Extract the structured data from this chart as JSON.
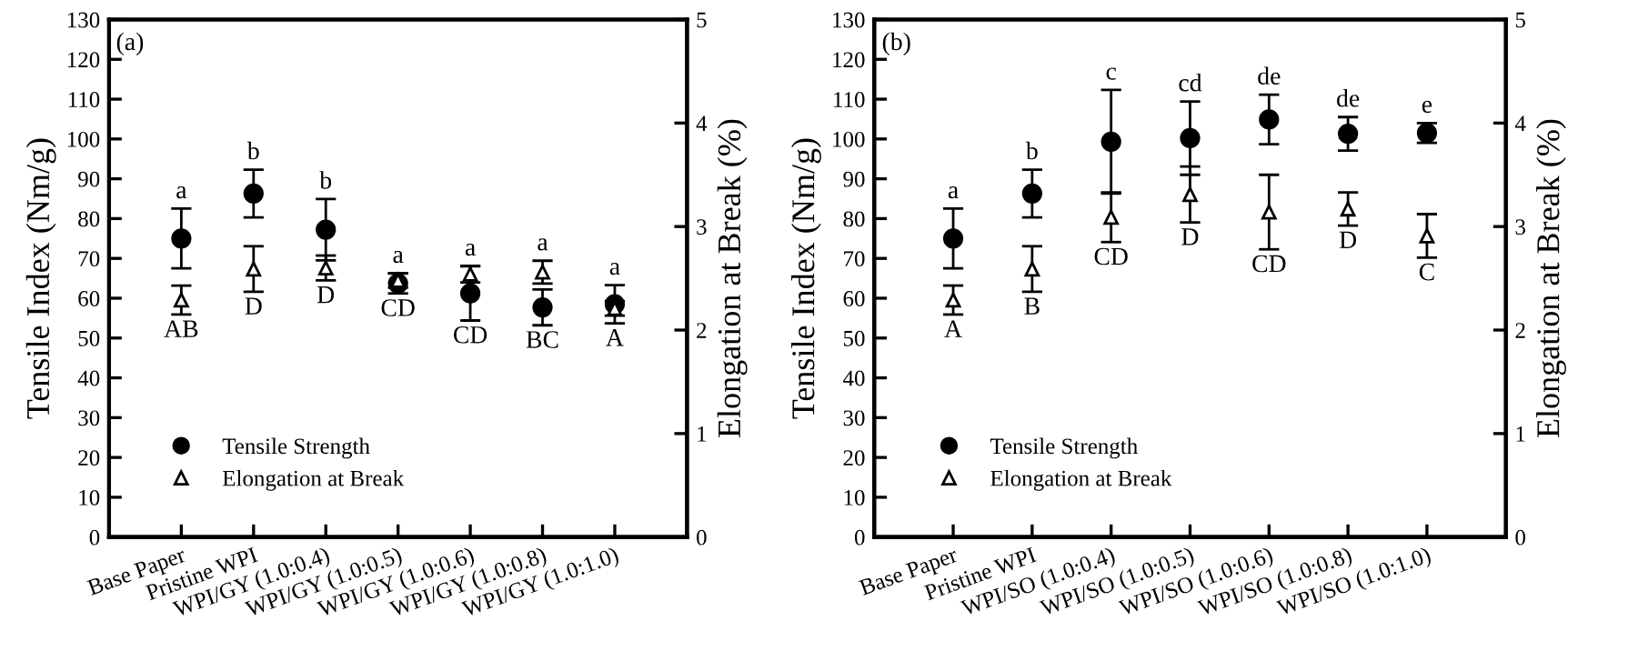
{
  "chart_data": [
    {
      "type": "scatter",
      "ylabel": "Tensile Index (Nm/g)",
      "y2label": "Elongation at Break (%)",
      "categories": [
        "Base Paper",
        "Pristine WPI",
        "WPI/GY (1.0:0.4)",
        "WPI/GY (1.0:0.5)",
        "WPI/GY (1.0:0.6)",
        "WPI/GY (1.0:0.8)",
        "WPI/GY (1.0:1.0)"
      ],
      "ylim": [
        0,
        130
      ],
      "yticks": [
        0,
        10,
        20,
        30,
        40,
        50,
        60,
        70,
        80,
        90,
        100,
        110,
        120,
        130
      ],
      "y2lim": [
        0,
        5
      ],
      "y2ticks": [
        0,
        1,
        2,
        3,
        4,
        5
      ],
      "legend": "bottom left",
      "grid": false,
      "series": [
        {
          "name": "Tensile Strength",
          "color": "#000000",
          "marker": "circle",
          "values": [
            75,
            86.3,
            77.2,
            63.7,
            61.2,
            57.7,
            58.5
          ],
          "errors": [
            7.5,
            6,
            7.7,
            2.5,
            6.8,
            4.5,
            4.8
          ]
        },
        {
          "name": "Elongation at Break",
          "color": "#000000",
          "marker": "triangle",
          "axis": "y2",
          "values": [
            2.29,
            2.59,
            2.6,
            2.48,
            2.54,
            2.56,
            2.21
          ],
          "errors": [
            0.14,
            0.22,
            0.12,
            0.07,
            0.08,
            0.11,
            0.07
          ]
        }
      ],
      "annotations": [
        "(a)",
        "a",
        "b",
        "b",
        "a",
        "a",
        "a",
        "a",
        "AB",
        "D",
        "D",
        "CD",
        "CD",
        "BC",
        "A"
      ]
    },
    {
      "type": "scatter",
      "ylabel": "Tensile Index (Nm/g)",
      "y2label": "Elongation at Break (%)",
      "categories": [
        "Base Paper",
        "Pristine WPI",
        "WPI/SO (1.0:0.4)",
        "WPI/SO (1.0:0.5)",
        "WPI/SO (1.0:0.6)",
        "WPI/SO (1.0:0.8)",
        "WPI/SO (1.0:1.0)"
      ],
      "ylim": [
        0,
        130
      ],
      "yticks": [
        0,
        10,
        20,
        30,
        40,
        50,
        60,
        70,
        80,
        90,
        100,
        110,
        120,
        130
      ],
      "y2lim": [
        0,
        5
      ],
      "y2ticks": [
        0,
        1,
        2,
        3,
        4,
        5
      ],
      "legend": "bottom left",
      "grid": false,
      "series": [
        {
          "name": "Tensile Strength",
          "color": "#000000",
          "marker": "circle",
          "values": [
            75,
            86.3,
            99.3,
            100.2,
            104.9,
            101.3,
            101.5
          ],
          "errors": [
            7.5,
            6,
            13,
            9.2,
            6.2,
            4.2,
            2.5
          ]
        },
        {
          "name": "Elongation at Break",
          "color": "#000000",
          "marker": "triangle",
          "axis": "y2",
          "values": [
            2.29,
            2.59,
            3.09,
            3.31,
            3.14,
            3.17,
            2.91
          ],
          "errors": [
            0.14,
            0.22,
            0.24,
            0.27,
            0.36,
            0.16,
            0.21
          ]
        }
      ],
      "annotations": [
        "(b)",
        "a",
        "b",
        "c",
        "cd",
        "de",
        "de",
        "e",
        "A",
        "B",
        "CD",
        "D",
        "CD",
        "D",
        "C"
      ]
    }
  ]
}
